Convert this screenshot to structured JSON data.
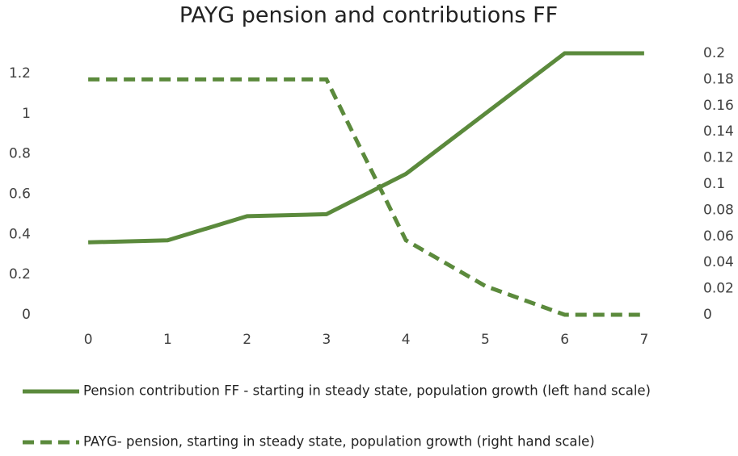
{
  "chart_data": {
    "type": "line",
    "title": "PAYG pension and contributions FF",
    "x": [
      0,
      1,
      2,
      3,
      4,
      5,
      6,
      7
    ],
    "xlim": [
      -0.5,
      7.5
    ],
    "xticks": [
      0,
      1,
      2,
      3,
      4,
      5,
      6,
      7
    ],
    "ylim": [
      0,
      1.3
    ],
    "yticks": [
      0,
      0.2,
      0.4,
      0.6,
      0.8,
      1,
      1.2
    ],
    "y2lim": [
      0,
      0.2
    ],
    "y2ticks": [
      0,
      0.02,
      0.04,
      0.06,
      0.08,
      0.1,
      0.12,
      0.14,
      0.16,
      0.18,
      0.2
    ],
    "grid": false,
    "legend": "bottom",
    "series": [
      {
        "name": "Pension contribution FF - starting in steady state, population growth (left hand scale)",
        "color": "#5b8a3c",
        "dash": "solid",
        "values": [
          0.36,
          0.37,
          0.49,
          0.5,
          0.7,
          1.0,
          1.3,
          1.3
        ]
      },
      {
        "name": "PAYG- pension, starting in steady state, population growth (right hand scale)",
        "color": "#5b8a3c",
        "dash": "dashed",
        "axis": "y2",
        "values": [
          0.18,
          0.18,
          0.18,
          0.18,
          0.057,
          0.022,
          0,
          0
        ]
      }
    ]
  }
}
